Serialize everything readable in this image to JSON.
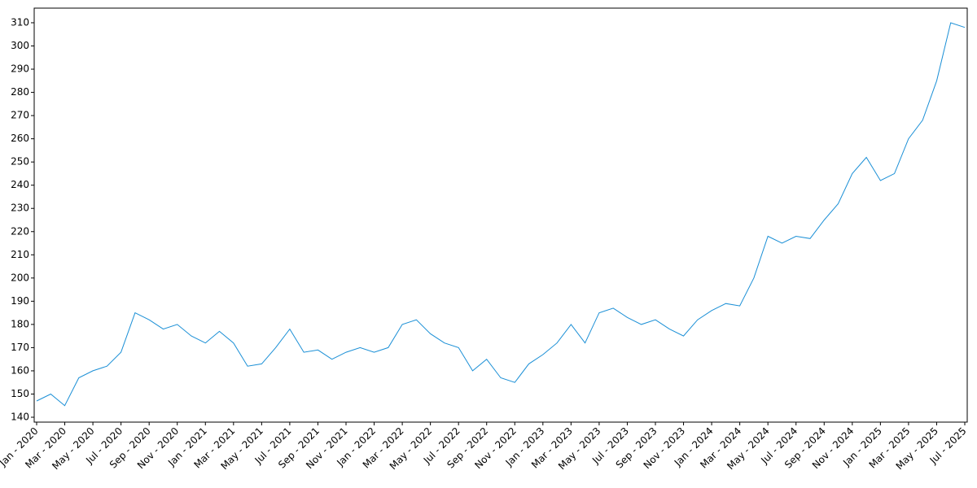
{
  "chart_data": {
    "type": "line",
    "color": "#1a8fd6",
    "x": [
      "2020-01",
      "2020-02",
      "2020-03",
      "2020-04",
      "2020-05",
      "2020-06",
      "2020-07",
      "2020-08",
      "2020-09",
      "2020-10",
      "2020-11",
      "2020-12",
      "2021-01",
      "2021-02",
      "2021-03",
      "2021-04",
      "2021-05",
      "2021-06",
      "2021-07",
      "2021-08",
      "2021-09",
      "2021-10",
      "2021-11",
      "2021-12",
      "2022-01",
      "2022-02",
      "2022-03",
      "2022-04",
      "2022-05",
      "2022-06",
      "2022-07",
      "2022-08",
      "2022-09",
      "2022-10",
      "2022-11",
      "2022-12",
      "2023-01",
      "2023-02",
      "2023-03",
      "2023-04",
      "2023-05",
      "2023-06",
      "2023-07",
      "2023-08",
      "2023-09",
      "2023-10",
      "2023-11",
      "2023-12",
      "2024-01",
      "2024-02",
      "2024-03",
      "2024-04",
      "2024-05",
      "2024-06",
      "2024-07",
      "2024-08",
      "2024-09",
      "2024-10",
      "2024-11",
      "2024-12",
      "2025-01",
      "2025-02",
      "2025-03",
      "2025-04",
      "2025-05",
      "2025-06",
      "2025-07"
    ],
    "values": [
      147,
      150,
      145,
      157,
      160,
      162,
      168,
      185,
      182,
      178,
      180,
      175,
      172,
      177,
      172,
      162,
      163,
      170,
      178,
      168,
      169,
      165,
      168,
      170,
      168,
      170,
      180,
      182,
      176,
      172,
      170,
      160,
      165,
      157,
      155,
      163,
      167,
      172,
      180,
      172,
      185,
      187,
      183,
      180,
      182,
      178,
      175,
      182,
      186,
      189,
      188,
      200,
      218,
      215,
      218,
      217,
      225,
      232,
      245,
      252,
      242,
      245,
      260,
      268,
      285,
      310,
      308
    ],
    "xlim": [
      "2020-01",
      "2025-07"
    ],
    "xticks": [
      {
        "value": "2020-01",
        "label": "Jan - 2020"
      },
      {
        "value": "2020-03",
        "label": "Mar - 2020"
      },
      {
        "value": "2020-05",
        "label": "May - 2020"
      },
      {
        "value": "2020-07",
        "label": "Jul - 2020"
      },
      {
        "value": "2020-09",
        "label": "Sep - 2020"
      },
      {
        "value": "2020-11",
        "label": "Nov - 2020"
      },
      {
        "value": "2021-01",
        "label": "Jan - 2021"
      },
      {
        "value": "2021-03",
        "label": "Mar - 2021"
      },
      {
        "value": "2021-05",
        "label": "May - 2021"
      },
      {
        "value": "2021-07",
        "label": "Jul - 2021"
      },
      {
        "value": "2021-09",
        "label": "Sep - 2021"
      },
      {
        "value": "2021-11",
        "label": "Nov - 2021"
      },
      {
        "value": "2022-01",
        "label": "Jan - 2022"
      },
      {
        "value": "2022-03",
        "label": "Mar - 2022"
      },
      {
        "value": "2022-05",
        "label": "May - 2022"
      },
      {
        "value": "2022-07",
        "label": "Jul - 2022"
      },
      {
        "value": "2022-09",
        "label": "Sep - 2022"
      },
      {
        "value": "2022-11",
        "label": "Nov - 2022"
      },
      {
        "value": "2023-01",
        "label": "Jan - 2023"
      },
      {
        "value": "2023-03",
        "label": "Mar - 2023"
      },
      {
        "value": "2023-05",
        "label": "May - 2023"
      },
      {
        "value": "2023-07",
        "label": "Jul - 2023"
      },
      {
        "value": "2023-09",
        "label": "Sep - 2023"
      },
      {
        "value": "2023-11",
        "label": "Nov - 2023"
      },
      {
        "value": "2024-01",
        "label": "Jan - 2024"
      },
      {
        "value": "2024-03",
        "label": "Mar - 2024"
      },
      {
        "value": "2024-05",
        "label": "May - 2024"
      },
      {
        "value": "2024-07",
        "label": "Jul - 2024"
      },
      {
        "value": "2024-09",
        "label": "Sep - 2024"
      },
      {
        "value": "2024-11",
        "label": "Nov - 2024"
      },
      {
        "value": "2025-01",
        "label": "Jan - 2025"
      },
      {
        "value": "2025-03",
        "label": "Mar - 2025"
      },
      {
        "value": "2025-05",
        "label": "May - 2025"
      },
      {
        "value": "2025-07",
        "label": "Jul - 2025"
      }
    ],
    "ylim": [
      137.9,
      316.3
    ],
    "yticks": [
      140,
      150,
      160,
      170,
      180,
      190,
      200,
      210,
      220,
      230,
      240,
      250,
      260,
      270,
      280,
      290,
      300,
      310
    ]
  }
}
